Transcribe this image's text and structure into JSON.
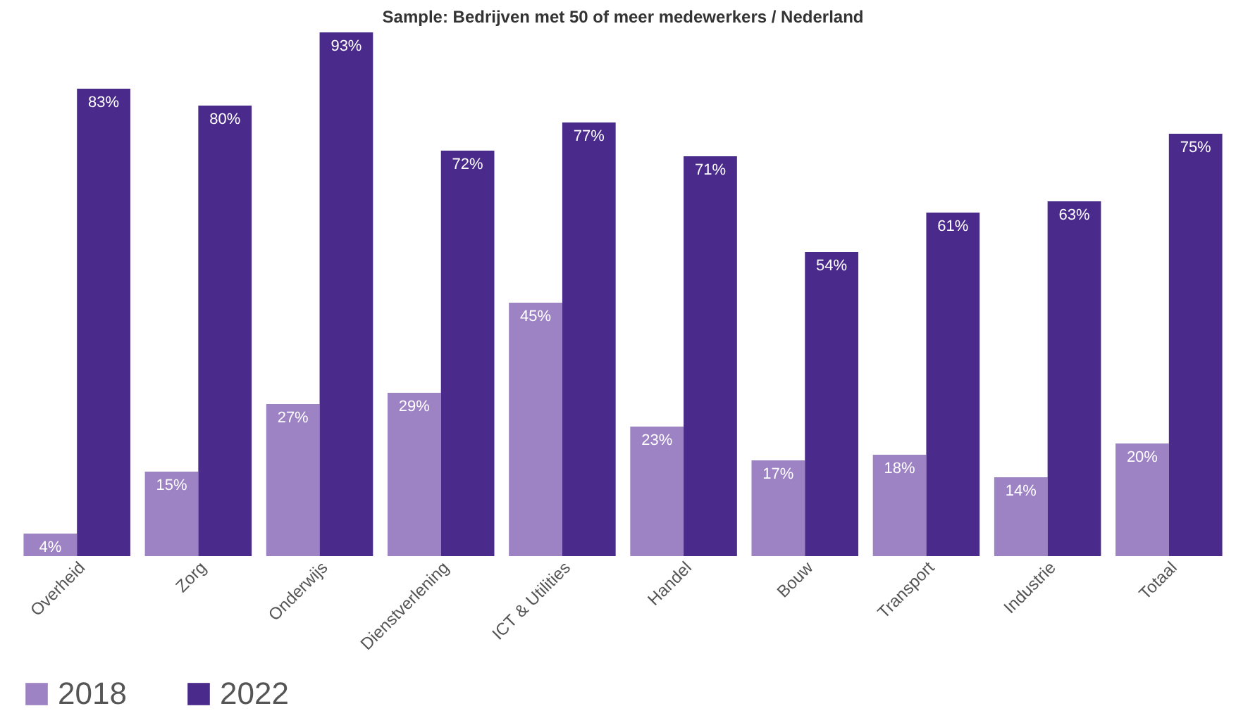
{
  "chart_data": {
    "type": "bar",
    "title": "Sample: Bedrijven met 50 of meer medewerkers / Nederland",
    "categories": [
      "Overheid",
      "Zorg",
      "Onderwijs",
      "Dienstverlening",
      "ICT & Utilities",
      "Handel",
      "Bouw",
      "Transport",
      "Industrie",
      "Totaal"
    ],
    "series": [
      {
        "name": "2018",
        "color": "#9d82c4",
        "values": [
          4,
          15,
          27,
          29,
          45,
          23,
          17,
          18,
          14,
          20
        ],
        "value_labels": [
          "4%",
          "15%",
          "27%",
          "29%",
          "45%",
          "23%",
          "17%",
          "18%",
          "14%",
          "20%"
        ]
      },
      {
        "name": "2022",
        "color": "#4a2a8a",
        "values": [
          83,
          80,
          93,
          72,
          77,
          71,
          54,
          61,
          63,
          75
        ],
        "value_labels": [
          "83%",
          "80%",
          "93%",
          "72%",
          "77%",
          "71%",
          "54%",
          "61%",
          "63%",
          "75%"
        ]
      }
    ],
    "legend": "bottom",
    "tick_labels": "x"
  }
}
